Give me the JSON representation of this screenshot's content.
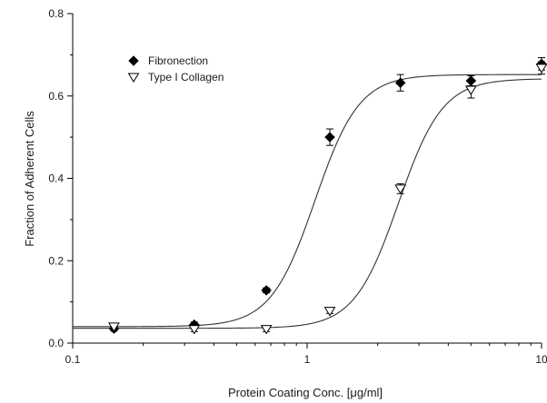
{
  "chart_data": {
    "type": "scatter",
    "xscale": "log",
    "xlim": [
      0.1,
      10
    ],
    "ylim": [
      0,
      0.8
    ],
    "xlabel": "Protein Coating Conc. [μg/ml]",
    "ylabel": "Fraction of Adherent Cells",
    "x_ticks": [
      0.1,
      1,
      10
    ],
    "x_tick_labels": [
      "0.1",
      "1",
      "10"
    ],
    "y_ticks": [
      0.0,
      0.2,
      0.4,
      0.6,
      0.8
    ],
    "y_tick_labels": [
      "0.0",
      "0.2",
      "0.4",
      "0.6",
      "0.8"
    ],
    "grid": false,
    "legend_position": "top-left",
    "series": [
      {
        "name": "Fibronection",
        "marker": "filled-diamond",
        "color": "#000000",
        "points": [
          {
            "x": 0.15,
            "y": 0.035,
            "err": 0.006
          },
          {
            "x": 0.33,
            "y": 0.045,
            "err": 0.006
          },
          {
            "x": 0.67,
            "y": 0.128,
            "err": 0.006
          },
          {
            "x": 1.25,
            "y": 0.5,
            "err": 0.02
          },
          {
            "x": 2.5,
            "y": 0.632,
            "err": 0.02
          },
          {
            "x": 5.0,
            "y": 0.637,
            "err": 0.012
          },
          {
            "x": 10.0,
            "y": 0.678,
            "err": 0.015
          }
        ],
        "fit": {
          "bottom": 0.04,
          "top": 0.652,
          "ec50": 1.08,
          "hill": 4.6
        }
      },
      {
        "name": "Type I Collagen",
        "marker": "open-triangle-down",
        "color": "#000000",
        "points": [
          {
            "x": 0.15,
            "y": 0.04,
            "err": 0.006
          },
          {
            "x": 0.33,
            "y": 0.034,
            "err": 0.006
          },
          {
            "x": 0.67,
            "y": 0.034,
            "err": 0.006
          },
          {
            "x": 1.25,
            "y": 0.078,
            "err": 0.006
          },
          {
            "x": 2.5,
            "y": 0.375,
            "err": 0.012
          },
          {
            "x": 5.0,
            "y": 0.615,
            "err": 0.02
          },
          {
            "x": 10.0,
            "y": 0.668,
            "err": 0.015
          }
        ],
        "fit": {
          "bottom": 0.036,
          "top": 0.642,
          "ec50": 2.45,
          "hill": 4.6
        }
      }
    ]
  }
}
